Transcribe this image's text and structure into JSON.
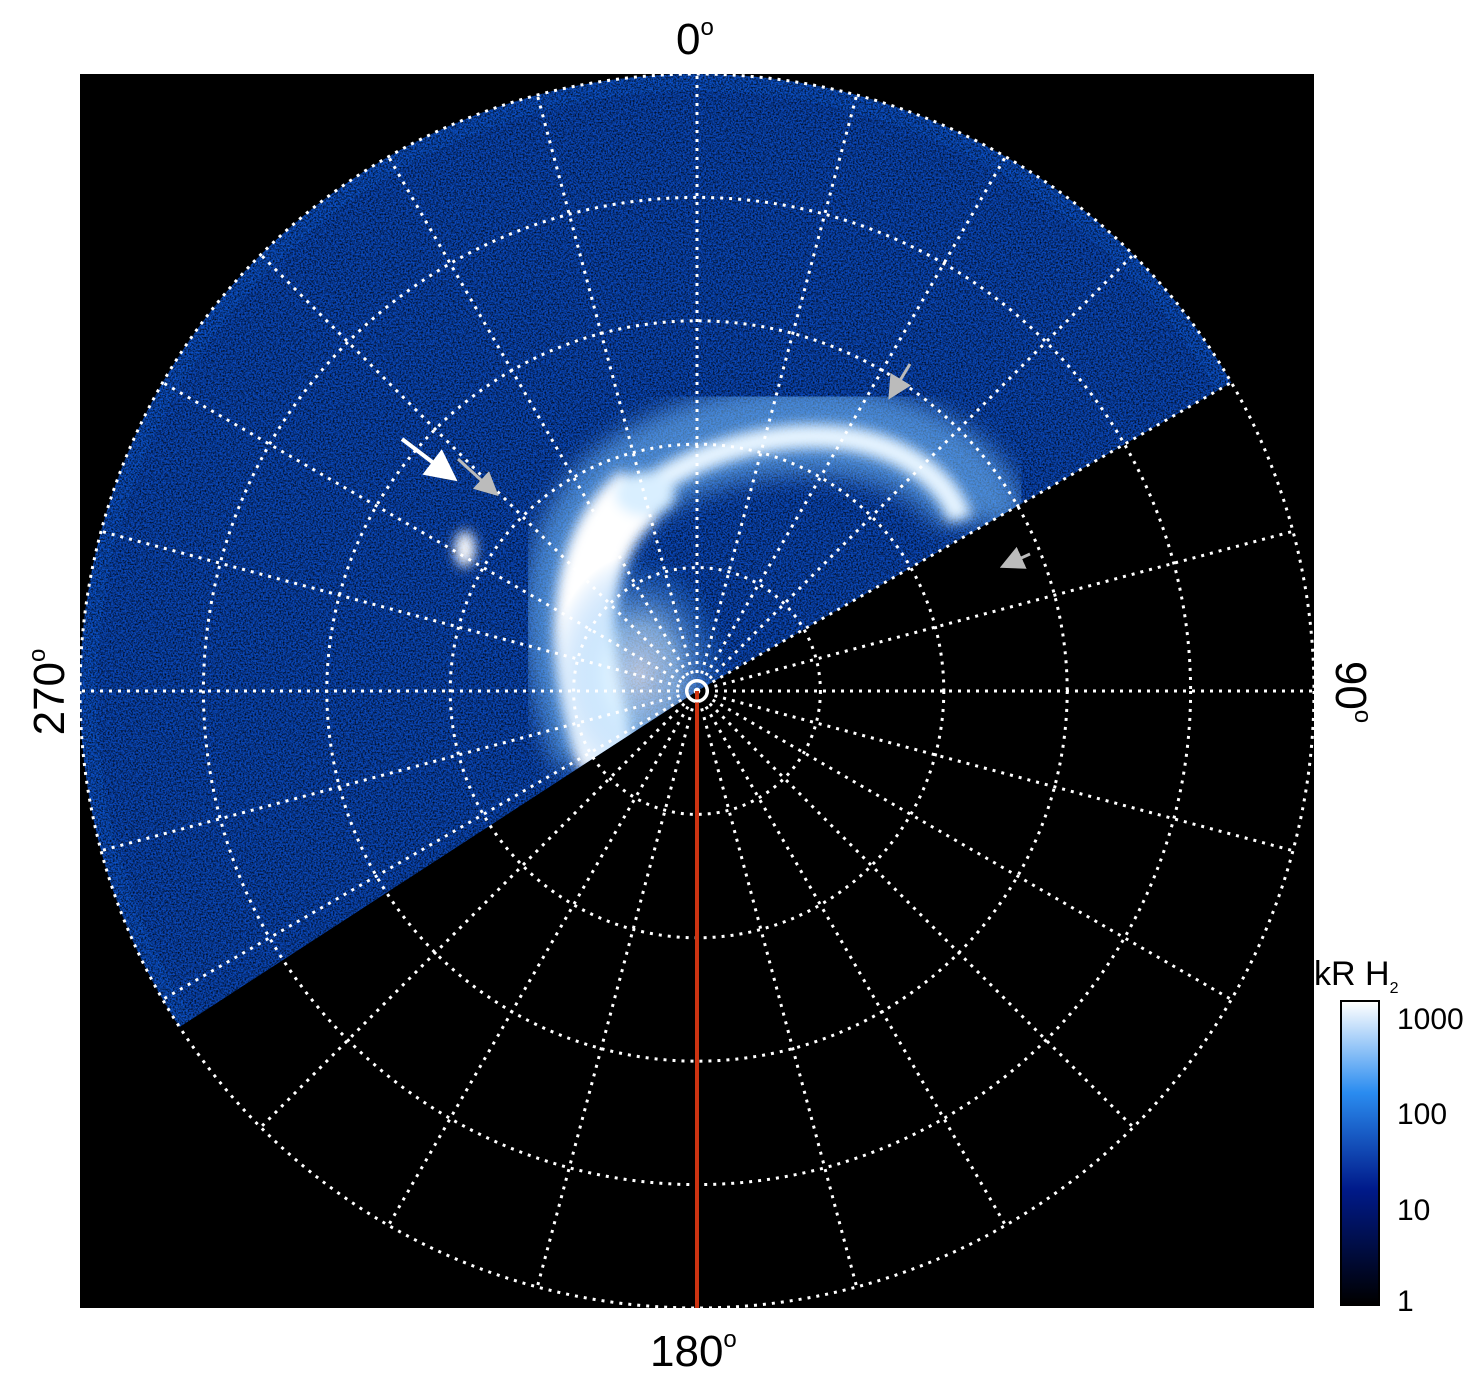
{
  "axis_labels": {
    "top": "0",
    "right": "90",
    "bottom": "180",
    "left": "270",
    "degree_symbol": "o"
  },
  "colorbar": {
    "unit": "kR H",
    "unit_subscript": "2",
    "ticks": [
      "1000",
      "100",
      "10",
      "1"
    ],
    "colors": [
      "#ffffff",
      "#2a8cf0",
      "#001a8a",
      "#000000"
    ]
  },
  "colors": {
    "background": "#000000",
    "grid": "#ffffff",
    "meridian": "#cc3311",
    "arrow_white": "#ffffff",
    "arrow_gray": "#bbbbbb"
  }
}
